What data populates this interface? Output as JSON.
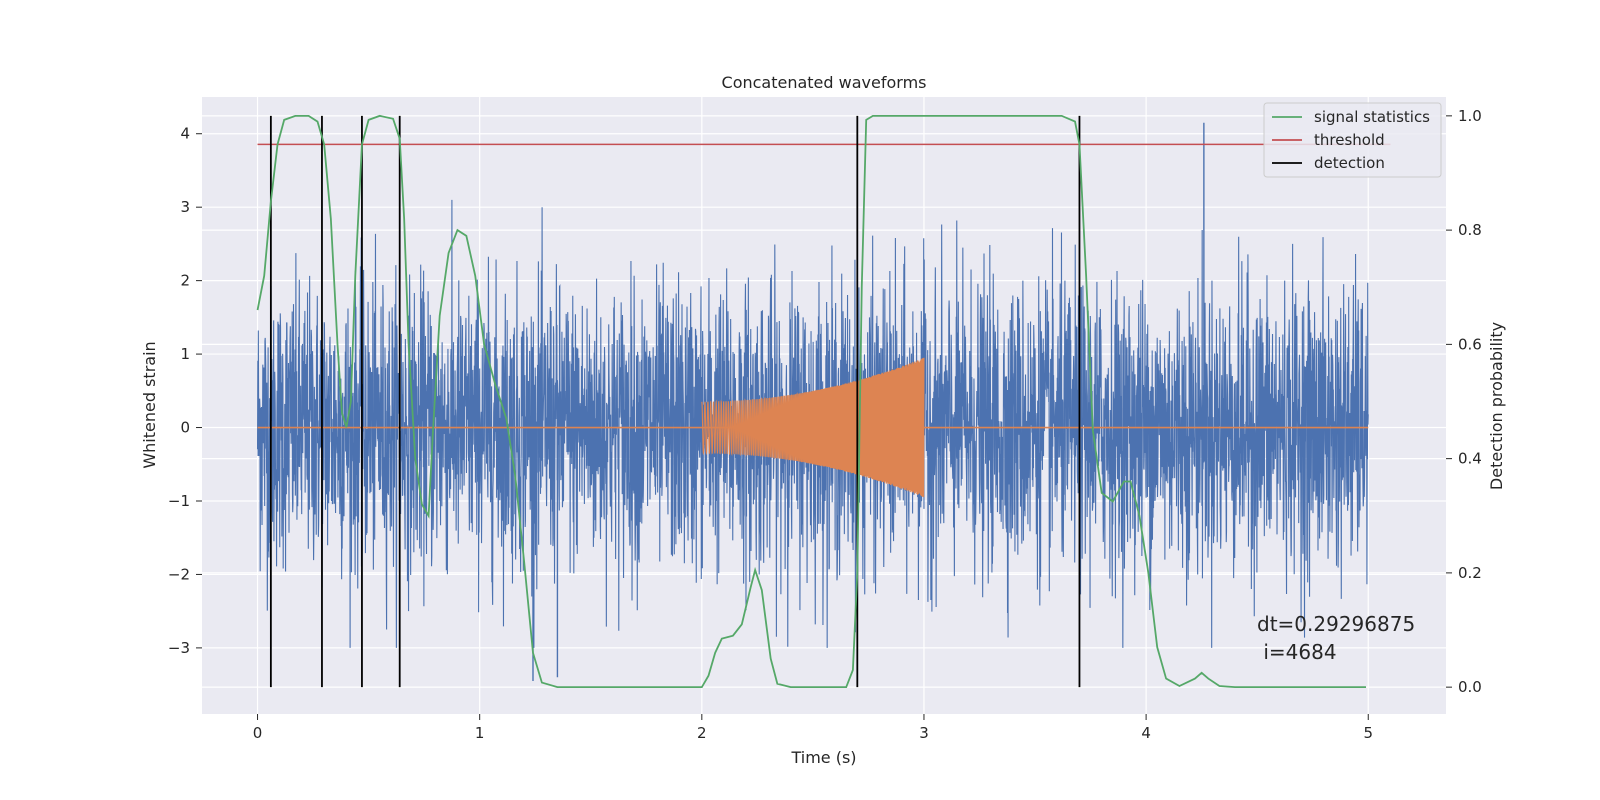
{
  "chart_data": {
    "type": "line",
    "title": "Concatenated waveforms",
    "xlabel": "Time (s)",
    "ylabel": "Whitened strain",
    "y2label": "Detection probability",
    "xlim": [
      -0.25,
      5.35
    ],
    "ylim": [
      -3.9,
      4.5
    ],
    "y2lim": [
      -0.047,
      1.033
    ],
    "x_ticks": [
      0,
      1,
      2,
      3,
      4,
      5
    ],
    "y_ticks": [
      -3,
      -2,
      -1,
      0,
      1,
      2,
      3,
      4
    ],
    "y2_ticks": [
      0.0,
      0.2,
      0.4,
      0.6,
      0.8,
      1.0
    ],
    "x_tick_labels": [
      "0",
      "1",
      "2",
      "3",
      "4",
      "5"
    ],
    "y_tick_labels": [
      "−3",
      "−2",
      "−1",
      "0",
      "1",
      "2",
      "3",
      "4"
    ],
    "y2_tick_labels": [
      "0.0",
      "0.2",
      "0.4",
      "0.6",
      "0.8",
      "1.0"
    ],
    "grid": true,
    "legend_position": "top-right",
    "colors": {
      "background": "#eaeaf2",
      "grid": "#ffffff",
      "strain": "#4c72b0",
      "template": "#dd8452",
      "signal_statistics": "#55a868",
      "threshold": "#c44e52",
      "detection": "#000000"
    },
    "series": [
      {
        "name": "whitened strain",
        "kind": "noise",
        "x_range": [
          0,
          5
        ],
        "approx_envelope": [
          -3.4,
          4.15
        ],
        "notable_peaks": [
          [
            4.26,
            4.15
          ],
          [
            1.35,
            -3.4
          ],
          [
            1.24,
            -3.45
          ]
        ]
      },
      {
        "name": "template",
        "kind": "chirp",
        "x_range": [
          2,
          3
        ],
        "start_amplitude": 0.35,
        "end_amplitude": 0.95
      },
      {
        "name": "signal statistics",
        "axis": "right",
        "points": [
          [
            0.0,
            0.66
          ],
          [
            0.03,
            0.72
          ],
          [
            0.06,
            0.85
          ],
          [
            0.09,
            0.95
          ],
          [
            0.12,
            0.993
          ],
          [
            0.17,
            1.0
          ],
          [
            0.23,
            1.0
          ],
          [
            0.27,
            0.99
          ],
          [
            0.3,
            0.95
          ],
          [
            0.33,
            0.82
          ],
          [
            0.36,
            0.6
          ],
          [
            0.38,
            0.48
          ],
          [
            0.4,
            0.455
          ],
          [
            0.42,
            0.5
          ],
          [
            0.44,
            0.72
          ],
          [
            0.47,
            0.95
          ],
          [
            0.5,
            0.993
          ],
          [
            0.55,
            1.0
          ],
          [
            0.61,
            0.995
          ],
          [
            0.64,
            0.96
          ],
          [
            0.66,
            0.82
          ],
          [
            0.68,
            0.6
          ],
          [
            0.71,
            0.4
          ],
          [
            0.74,
            0.32
          ],
          [
            0.77,
            0.3
          ],
          [
            0.79,
            0.45
          ],
          [
            0.82,
            0.65
          ],
          [
            0.86,
            0.76
          ],
          [
            0.9,
            0.8
          ],
          [
            0.94,
            0.79
          ],
          [
            0.98,
            0.72
          ],
          [
            1.02,
            0.6
          ],
          [
            1.07,
            0.53
          ],
          [
            1.12,
            0.47
          ],
          [
            1.16,
            0.37
          ],
          [
            1.2,
            0.22
          ],
          [
            1.24,
            0.06
          ],
          [
            1.28,
            0.008
          ],
          [
            1.35,
            0.0
          ],
          [
            2.0,
            0.0
          ],
          [
            2.03,
            0.02
          ],
          [
            2.06,
            0.06
          ],
          [
            2.09,
            0.085
          ],
          [
            2.14,
            0.09
          ],
          [
            2.18,
            0.11
          ],
          [
            2.22,
            0.175
          ],
          [
            2.24,
            0.205
          ],
          [
            2.27,
            0.17
          ],
          [
            2.31,
            0.05
          ],
          [
            2.34,
            0.006
          ],
          [
            2.4,
            0.0
          ],
          [
            2.65,
            0.0
          ],
          [
            2.68,
            0.03
          ],
          [
            2.7,
            0.2
          ],
          [
            2.72,
            0.7
          ],
          [
            2.74,
            0.993
          ],
          [
            2.77,
            1.0
          ],
          [
            3.62,
            1.0
          ],
          [
            3.68,
            0.99
          ],
          [
            3.7,
            0.95
          ],
          [
            3.73,
            0.72
          ],
          [
            3.76,
            0.45
          ],
          [
            3.8,
            0.34
          ],
          [
            3.85,
            0.325
          ],
          [
            3.9,
            0.36
          ],
          [
            3.93,
            0.36
          ],
          [
            3.97,
            0.3
          ],
          [
            4.01,
            0.2
          ],
          [
            4.05,
            0.07
          ],
          [
            4.09,
            0.015
          ],
          [
            4.15,
            0.002
          ],
          [
            4.22,
            0.015
          ],
          [
            4.25,
            0.025
          ],
          [
            4.28,
            0.015
          ],
          [
            4.33,
            0.002
          ],
          [
            4.4,
            0.0
          ],
          [
            4.99,
            0.0
          ]
        ]
      },
      {
        "name": "threshold",
        "axis": "right",
        "value": 0.95,
        "x_range": [
          0,
          5.1
        ]
      },
      {
        "name": "detection",
        "axis": "right",
        "x": [
          0.06,
          0.29,
          0.47,
          0.64,
          2.7,
          3.7
        ],
        "y_range": [
          0.0,
          1.0
        ]
      }
    ],
    "legend": [
      "signal statistics",
      "threshold",
      "detection"
    ],
    "annotations": [
      "dt=0.29296875",
      " i=4684"
    ]
  }
}
